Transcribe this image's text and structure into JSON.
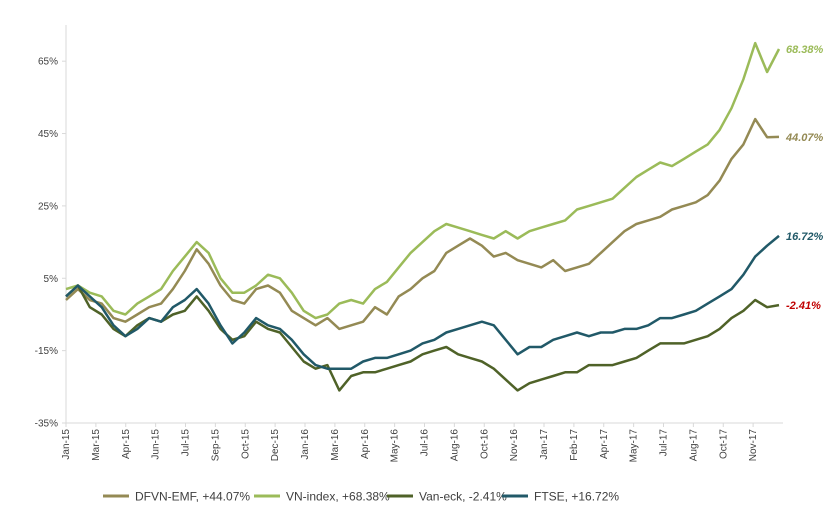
{
  "chart_data": {
    "type": "line",
    "title": "",
    "xlabel": "",
    "ylabel": "",
    "y_unit": "%",
    "ylim": [
      -35,
      75
    ],
    "y_ticks": [
      -35,
      -15,
      5,
      25,
      45,
      65
    ],
    "y_tick_labels": [
      "-35%",
      "-15%",
      "5%",
      "25%",
      "45%",
      "65%"
    ],
    "x_tick_labels": [
      "Jan-15",
      "Mar-15",
      "Apr-15",
      "Jun-15",
      "Jul-15",
      "Sep-15",
      "Oct-15",
      "Dec-15",
      "Jan-16",
      "Mar-16",
      "Apr-16",
      "May-16",
      "Jul-16",
      "Aug-16",
      "Oct-16",
      "Nov-16",
      "Jan-17",
      "Feb-17",
      "Apr-17",
      "May-17",
      "Jul-17",
      "Aug-17",
      "Oct-17",
      "Nov-17"
    ],
    "grid": false,
    "legend_position": "bottom",
    "series": [
      {
        "name": "DFVN-EMF, +44.07%",
        "color": "#948A54",
        "end_label": "44.07%",
        "end_label_color": "#948A54",
        "values": [
          -1,
          2,
          -1,
          -2,
          -6,
          -7,
          -5,
          -3,
          -2,
          2,
          7,
          13,
          9,
          3,
          -1,
          -2,
          2,
          3,
          1,
          -4,
          -6,
          -8,
          -6,
          -9,
          -8,
          -7,
          -3,
          -5,
          0,
          2,
          5,
          7,
          12,
          14,
          16,
          14,
          11,
          12,
          10,
          9,
          8,
          10,
          7,
          8,
          9,
          12,
          15,
          18,
          20,
          21,
          22,
          24,
          25,
          26,
          28,
          32,
          38,
          42,
          49,
          44,
          44.07
        ]
      },
      {
        "name": "VN-index, +68.38%",
        "color": "#9BBB59",
        "end_label": "68.38%",
        "end_label_color": "#9BBB59",
        "values": [
          2,
          3,
          1,
          0,
          -4,
          -5,
          -2,
          0,
          2,
          7,
          11,
          15,
          12,
          5,
          1,
          1,
          3,
          6,
          5,
          1,
          -4,
          -6,
          -5,
          -2,
          -1,
          -2,
          2,
          4,
          8,
          12,
          15,
          18,
          20,
          19,
          18,
          17,
          16,
          18,
          16,
          18,
          19,
          20,
          21,
          24,
          25,
          26,
          27,
          30,
          33,
          35,
          37,
          36,
          38,
          40,
          42,
          46,
          52,
          60,
          70,
          62,
          68.38
        ]
      },
      {
        "name": "Van-eck, -2.41%",
        "color": "#4F6228",
        "end_label": "-2.41%",
        "end_label_color": "#C00000",
        "values": [
          0,
          3,
          -3,
          -5,
          -9,
          -11,
          -8,
          -6,
          -7,
          -5,
          -4,
          0,
          -4,
          -9,
          -12,
          -11,
          -7,
          -9,
          -10,
          -14,
          -18,
          -20,
          -19,
          -26,
          -22,
          -21,
          -21,
          -20,
          -19,
          -18,
          -16,
          -15,
          -14,
          -16,
          -17,
          -18,
          -20,
          -23,
          -26,
          -24,
          -23,
          -22,
          -21,
          -21,
          -19,
          -19,
          -19,
          -18,
          -17,
          -15,
          -13,
          -13,
          -13,
          -12,
          -11,
          -9,
          -6,
          -4,
          -1,
          -3,
          -2.41
        ]
      },
      {
        "name": "FTSE, +16.72%",
        "color": "#215968",
        "end_label": "16.72%",
        "end_label_color": "#215968",
        "values": [
          0,
          3,
          0,
          -3,
          -8,
          -11,
          -9,
          -6,
          -7,
          -3,
          -1,
          2,
          -2,
          -8,
          -13,
          -10,
          -6,
          -8,
          -9,
          -12,
          -16,
          -19,
          -20,
          -20,
          -20,
          -18,
          -17,
          -17,
          -16,
          -15,
          -13,
          -12,
          -10,
          -9,
          -8,
          -7,
          -8,
          -12,
          -16,
          -14,
          -14,
          -12,
          -11,
          -10,
          -11,
          -10,
          -10,
          -9,
          -9,
          -8,
          -6,
          -6,
          -5,
          -4,
          -2,
          0,
          2,
          6,
          11,
          14,
          16.72
        ]
      }
    ]
  }
}
